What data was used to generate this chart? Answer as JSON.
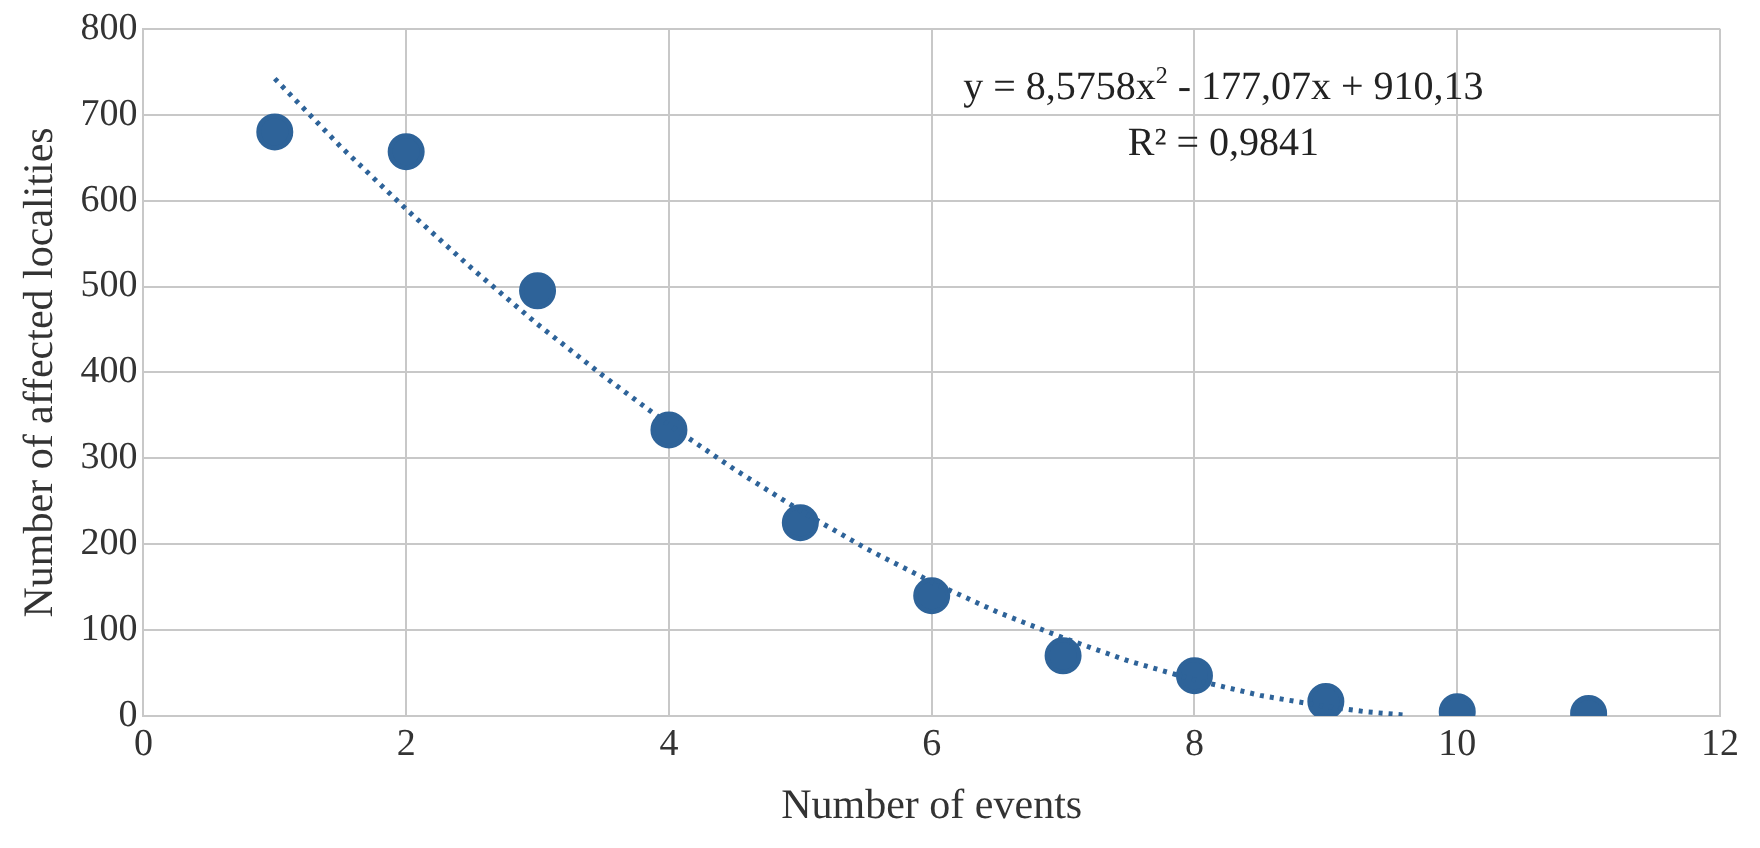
{
  "chart_data": {
    "type": "scatter",
    "xlabel": "Number of events",
    "ylabel": "Number of affected localities",
    "xlim": [
      0,
      12
    ],
    "xticks": [
      0,
      2,
      4,
      6,
      8,
      10,
      12
    ],
    "ylim": [
      0,
      800
    ],
    "yticks": [
      0,
      100,
      200,
      300,
      400,
      500,
      600,
      700,
      800
    ],
    "grid": true,
    "legend": false,
    "marker": "circle",
    "series": [
      {
        "color": "#2e6399",
        "x": [
          1,
          2,
          3,
          4,
          5,
          6,
          7,
          8,
          9,
          10,
          11
        ],
        "values": [
          680,
          657,
          495,
          333,
          225,
          140,
          70,
          47,
          17,
          5,
          3
        ]
      },
      {
        "type": "line",
        "color": "#2e6399",
        "line_style": "dotted",
        "marker": "none",
        "x": [
          1,
          1.5,
          2,
          2.5,
          3,
          3.5,
          4,
          4.5,
          5,
          5.5,
          6,
          6.5,
          7,
          7.5,
          8,
          8.5,
          9,
          9.3,
          9.6
        ],
        "values": [
          742,
          663,
          590,
          521,
          456,
          396,
          339,
          287,
          239,
          195,
          156,
          121,
          91,
          64,
          42,
          24,
          11,
          5,
          1
        ]
      }
    ],
    "annotations": [
      "y = 8,5758x$^{2}$ - 177,07x + 910,13",
      "R² = 0,9841"
    ]
  }
}
